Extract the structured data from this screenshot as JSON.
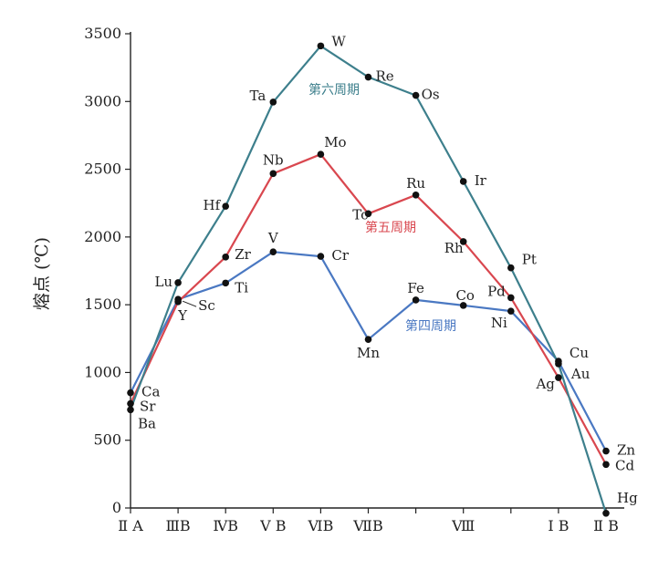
{
  "chart_data": {
    "type": "line",
    "ylabel": "熔点 (℃)",
    "ylim": [
      0,
      3500
    ],
    "yticks": [
      0,
      500,
      1000,
      1500,
      2000,
      2500,
      3000,
      3500
    ],
    "group_labels": [
      {
        "label": "Ⅱ A",
        "x": 0
      },
      {
        "label": "ⅢB",
        "x": 1
      },
      {
        "label": "ⅣB",
        "x": 2
      },
      {
        "label": "Ⅴ B",
        "x": 3
      },
      {
        "label": "ⅥB",
        "x": 4
      },
      {
        "label": "ⅦB",
        "x": 5
      },
      {
        "label": "Ⅷ",
        "x": 7
      },
      {
        "label": "Ⅰ B",
        "x": 9
      },
      {
        "label": "Ⅱ B",
        "x": 10
      }
    ],
    "series": [
      {
        "name": "第四周期",
        "color": "#4a78c2",
        "points": [
          {
            "el": "Ca",
            "x": 0,
            "y": 850
          },
          {
            "el": "Sc",
            "x": 1,
            "y": 1540
          },
          {
            "el": "Ti",
            "x": 2,
            "y": 1660
          },
          {
            "el": "V",
            "x": 3,
            "y": 1890
          },
          {
            "el": "Cr",
            "x": 4,
            "y": 1857
          },
          {
            "el": "Mn",
            "x": 5,
            "y": 1244
          },
          {
            "el": "Fe",
            "x": 6,
            "y": 1535
          },
          {
            "el": "Co",
            "x": 7,
            "y": 1495
          },
          {
            "el": "Ni",
            "x": 8,
            "y": 1453
          },
          {
            "el": "Cu",
            "x": 9,
            "y": 1083
          },
          {
            "el": "Zn",
            "x": 10,
            "y": 420
          }
        ]
      },
      {
        "name": "第五周期",
        "color": "#d9474f",
        "points": [
          {
            "el": "Sr",
            "x": 0,
            "y": 770
          },
          {
            "el": "Y",
            "x": 1,
            "y": 1522
          },
          {
            "el": "Zr",
            "x": 2,
            "y": 1852
          },
          {
            "el": "Nb",
            "x": 3,
            "y": 2468
          },
          {
            "el": "Mo",
            "x": 4,
            "y": 2610
          },
          {
            "el": "Tc",
            "x": 5,
            "y": 2172
          },
          {
            "el": "Ru",
            "x": 6,
            "y": 2310
          },
          {
            "el": "Rh",
            "x": 7,
            "y": 1966
          },
          {
            "el": "Pd",
            "x": 8,
            "y": 1552
          },
          {
            "el": "Ag",
            "x": 9,
            "y": 962
          },
          {
            "el": "Cd",
            "x": 10,
            "y": 321
          }
        ]
      },
      {
        "name": "第六周期",
        "color": "#3d7f8c",
        "points": [
          {
            "el": "Ba",
            "x": 0,
            "y": 725
          },
          {
            "el": "Lu",
            "x": 1,
            "y": 1663
          },
          {
            "el": "Hf",
            "x": 2,
            "y": 2227
          },
          {
            "el": "Ta",
            "x": 3,
            "y": 2996
          },
          {
            "el": "W",
            "x": 4,
            "y": 3410
          },
          {
            "el": "Re",
            "x": 5,
            "y": 3180
          },
          {
            "el": "Os",
            "x": 6,
            "y": 3045
          },
          {
            "el": "Ir",
            "x": 7,
            "y": 2410
          },
          {
            "el": "Pt",
            "x": 8,
            "y": 1772
          },
          {
            "el": "Au",
            "x": 9,
            "y": 1064
          },
          {
            "el": "Hg",
            "x": 10,
            "y": -39
          }
        ]
      }
    ]
  }
}
